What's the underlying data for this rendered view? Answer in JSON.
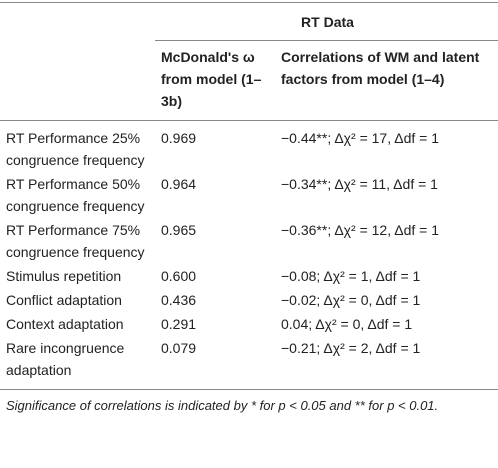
{
  "table": {
    "group_header": "RT Data",
    "columns": [
      "McDonald's ω from model (1–3b)",
      "Correlations of WM and latent factors from model (1–4)"
    ],
    "rows": [
      [
        "RT Performance 25% congruence frequency",
        "0.969",
        "−0.44**; Δχ² = 17, Δdf = 1"
      ],
      [
        "RT Performance 50% congruence frequency",
        "0.964",
        "−0.34**; Δχ² = 11, Δdf = 1"
      ],
      [
        "RT Performance 75% congruence frequency",
        "0.965",
        "−0.36**; Δχ² = 12, Δdf = 1"
      ],
      [
        "Stimulus repetition",
        "0.600",
        "−0.08; Δχ² = 1, Δdf = 1"
      ],
      [
        "Conflict adaptation",
        "0.436",
        "−0.02; Δχ² = 0, Δdf = 1"
      ],
      [
        "Context adaptation",
        "0.291",
        "0.04; Δχ² = 0, Δdf = 1"
      ],
      [
        "Rare incongruence adaptation",
        "0.079",
        "−0.21; Δχ² = 2, Δdf = 1"
      ]
    ]
  },
  "footnote": "Significance of correlations is indicated by * for p < 0.05 and ** for p < 0.01."
}
